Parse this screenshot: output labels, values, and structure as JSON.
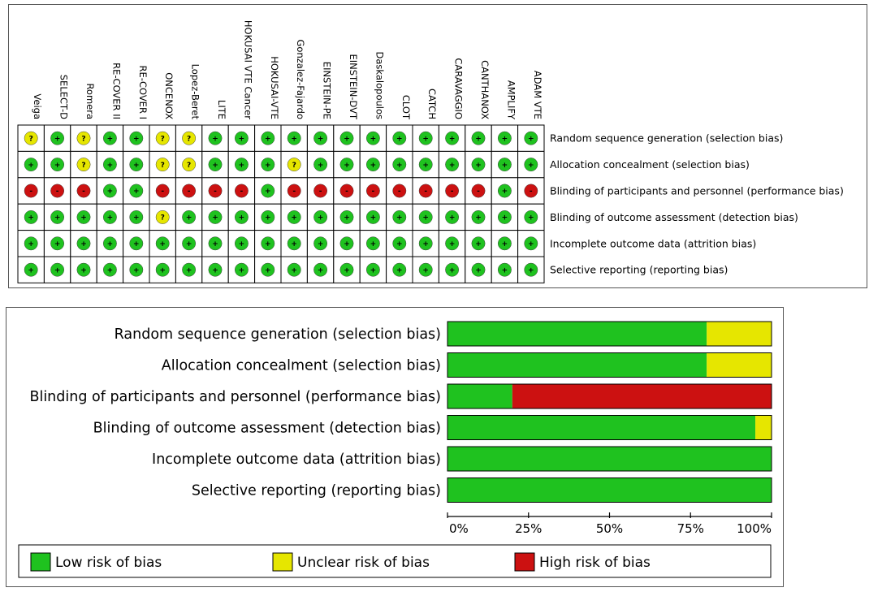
{
  "chart_data": [
    {
      "type": "table",
      "title": "",
      "studies": [
        "Veiga",
        "SELECT-D",
        "Romera",
        "RE-COVER II",
        "RE-COVER I",
        "ONCENOX",
        "Lopez-Beret",
        "LITE",
        "HOKUSAI VTE Cancer",
        "HOKUSAI-VTE",
        "Gonzalez-Fajardo",
        "EINSTEIN-PE",
        "EINSTEIN-DVT",
        "Daskalopoulos",
        "CLOT",
        "CATCH",
        "CARAVAGGIO",
        "CANTHANOX",
        "AMPLIFY",
        "ADAM VTE"
      ],
      "domains": [
        "Random sequence generation (selection bias)",
        "Allocation concealment (selection bias)",
        "Blinding of participants and personnel (performance bias)",
        "Blinding of outcome assessment (detection bias)",
        "Incomplete outcome data (attrition bias)",
        "Selective reporting (reporting bias)"
      ],
      "judgements": [
        [
          "?",
          "+",
          "?",
          "+",
          "+",
          "?",
          "?",
          "+",
          "+",
          "+",
          "+",
          "+",
          "+",
          "+",
          "+",
          "+",
          "+",
          "+",
          "+",
          "+"
        ],
        [
          "+",
          "+",
          "?",
          "+",
          "+",
          "?",
          "?",
          "+",
          "+",
          "+",
          "?",
          "+",
          "+",
          "+",
          "+",
          "+",
          "+",
          "+",
          "+",
          "+"
        ],
        [
          "-",
          "-",
          "-",
          "+",
          "+",
          "-",
          "-",
          "-",
          "-",
          "+",
          "-",
          "-",
          "-",
          "-",
          "-",
          "-",
          "-",
          "-",
          "+",
          "-"
        ],
        [
          "+",
          "+",
          "+",
          "+",
          "+",
          "?",
          "+",
          "+",
          "+",
          "+",
          "+",
          "+",
          "+",
          "+",
          "+",
          "+",
          "+",
          "+",
          "+",
          "+"
        ],
        [
          "+",
          "+",
          "+",
          "+",
          "+",
          "+",
          "+",
          "+",
          "+",
          "+",
          "+",
          "+",
          "+",
          "+",
          "+",
          "+",
          "+",
          "+",
          "+",
          "+"
        ],
        [
          "+",
          "+",
          "+",
          "+",
          "+",
          "+",
          "+",
          "+",
          "+",
          "+",
          "+",
          "+",
          "+",
          "+",
          "+",
          "+",
          "+",
          "+",
          "+",
          "+"
        ]
      ]
    },
    {
      "type": "bar",
      "orientation": "horizontal",
      "stacked": true,
      "title": "",
      "categories": [
        "Random sequence generation (selection bias)",
        "Allocation concealment (selection bias)",
        "Blinding of participants and personnel (performance bias)",
        "Blinding of outcome assessment (detection bias)",
        "Incomplete outcome data (attrition bias)",
        "Selective reporting (reporting bias)"
      ],
      "series": [
        {
          "name": "Low risk of bias",
          "values": [
            80,
            80,
            20,
            95,
            100,
            100
          ]
        },
        {
          "name": "Unclear risk of bias",
          "values": [
            20,
            20,
            0,
            5,
            0,
            0
          ]
        },
        {
          "name": "High risk of bias",
          "values": [
            0,
            0,
            80,
            0,
            0,
            0
          ]
        }
      ],
      "xlim": [
        0,
        100
      ],
      "xticks": [
        "0%",
        "25%",
        "50%",
        "75%",
        "100%"
      ],
      "legend_position": "bottom"
    }
  ],
  "colors": {
    "low": "#1fc21f",
    "unclear": "#e6e600",
    "high": "#cc1111"
  }
}
